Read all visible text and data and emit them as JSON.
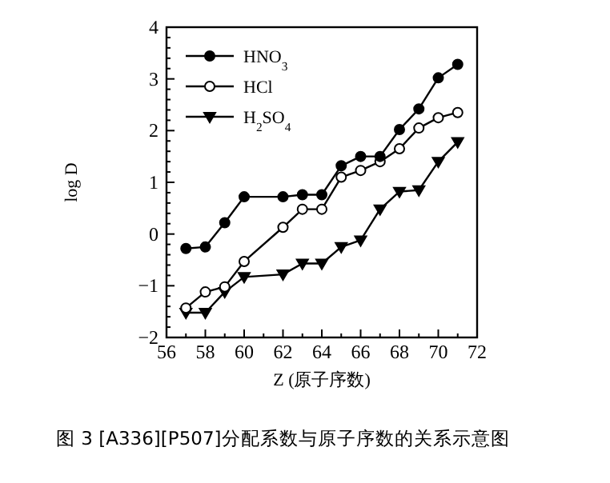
{
  "chart_data": {
    "type": "line",
    "xlabel": "Z (原子序数)",
    "ylabel": "log D",
    "x": [
      57,
      58,
      59,
      60,
      62,
      63,
      64,
      65,
      66,
      67,
      68,
      69,
      70,
      71
    ],
    "series": [
      {
        "name": "HNO$_{3}$",
        "color": "#000000",
        "marker": "circle",
        "values": [
          -0.28,
          -0.25,
          0.22,
          0.72,
          0.72,
          0.76,
          0.76,
          1.32,
          1.5,
          1.5,
          2.02,
          2.42,
          3.02,
          3.28
        ]
      },
      {
        "name": "HCl",
        "color": "#000000",
        "marker": "circle",
        "values": [
          -1.43,
          -1.12,
          -1.02,
          -0.53,
          0.13,
          0.48,
          0.48,
          1.1,
          1.23,
          1.4,
          1.65,
          2.05,
          2.25,
          2.35
        ]
      },
      {
        "name": "H$_{2}$SO$_{4}$",
        "color": "#000000",
        "marker": "triangle",
        "values": [
          -1.52,
          -1.52,
          -1.12,
          -0.83,
          -0.78,
          -0.57,
          -0.57,
          -0.25,
          -0.12,
          0.48,
          0.82,
          0.85,
          1.4,
          1.78
        ]
      }
    ],
    "xlim": [
      56,
      72
    ],
    "xticks": [
      56,
      58,
      60,
      62,
      64,
      66,
      68,
      70,
      72
    ],
    "ylim": [
      -2,
      4
    ],
    "yticks": [
      -2,
      -1,
      0,
      1,
      2,
      3,
      4
    ],
    "legend": "top left",
    "grid": false,
    "line_style": "solid",
    "annotations": [
      "图 3 [A336][P507]分配系数与原子序数的关系示意图"
    ]
  }
}
